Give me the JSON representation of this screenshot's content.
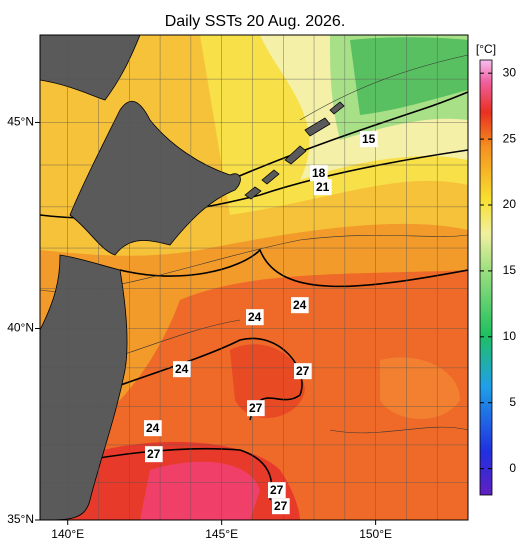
{
  "title": "Daily SSTs 20 Aug. 2026.",
  "map": {
    "xlim": [
      139.1,
      153
    ],
    "ylim": [
      35,
      47
    ],
    "xticks": [
      {
        "value": 140,
        "label": "140°E"
      },
      {
        "value": 145,
        "label": "145°E"
      },
      {
        "value": 150,
        "label": "150°E"
      }
    ],
    "yticks": [
      {
        "value": 35,
        "label": "35°N"
      },
      {
        "value": 40,
        "label": "40°N"
      },
      {
        "value": 45,
        "label": "45°N"
      }
    ],
    "xgrid": [
      140,
      141,
      142,
      143,
      144,
      145,
      146,
      147,
      148,
      149,
      150,
      151,
      152
    ],
    "ygrid": [
      36,
      37,
      38,
      39,
      40,
      41,
      42,
      43,
      44,
      45,
      46
    ],
    "contour_labels": [
      15,
      18,
      21,
      24,
      24,
      24,
      24,
      27,
      27,
      27,
      27,
      27
    ]
  },
  "colorbar": {
    "unit": "[°C]",
    "lim": [
      -2,
      31
    ],
    "ticks": [
      0,
      5,
      10,
      15,
      20,
      25,
      30
    ]
  }
}
